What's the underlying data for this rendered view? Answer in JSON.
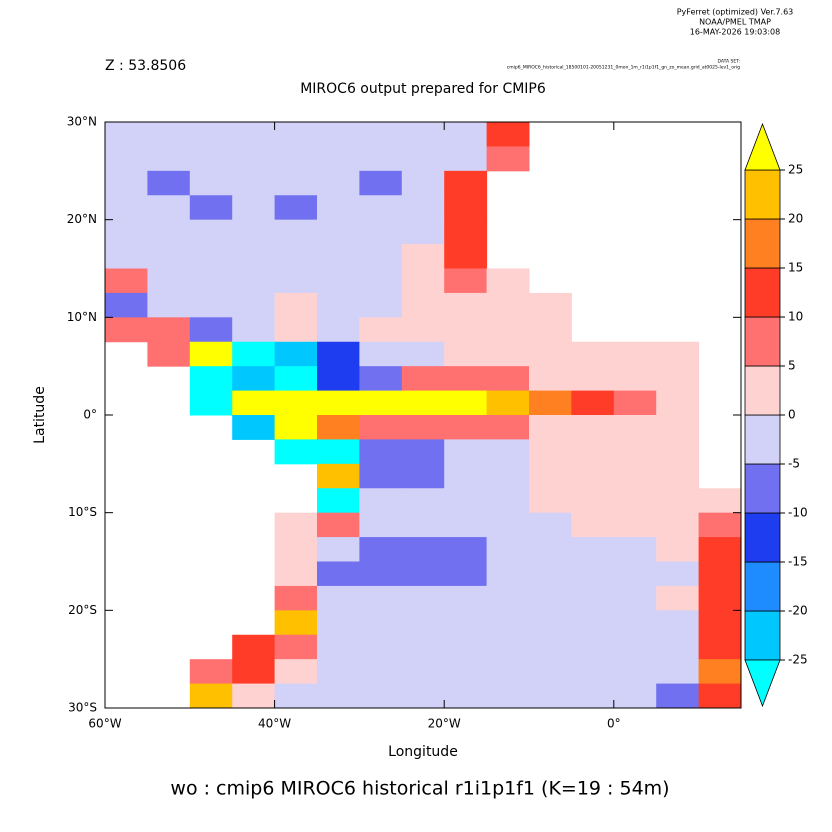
{
  "chart_data": {
    "type": "heatmap",
    "header": [
      "PyFerret (optimized) Ver.7.63",
      "NOAA/PMEL TMAP",
      "16-MAY-2026 19:03:08"
    ],
    "dataset_label": "DATA SET:",
    "dataset": "cmip6_MIROC6_historical_18500101-20051231_0mon_1m_r1i1p1f1_gn_zo_mean.grid_at0025-lev1_orig",
    "depth_label": "Z : 53.8506",
    "title": "MIROC6 output prepared for CMIP6",
    "xlabel": "Longitude",
    "ylabel": "Latitude",
    "footer": "wo : cmip6 MIROC6 historical r1i1p1f1   (K=19 : 54m)",
    "xlim": [
      -60,
      15
    ],
    "ylim": [
      -30,
      30
    ],
    "xticks": [
      {
        "value": -60,
        "label": "60°W"
      },
      {
        "value": -40,
        "label": "40°W"
      },
      {
        "value": -20,
        "label": "20°W"
      },
      {
        "value": 0,
        "label": "0°"
      }
    ],
    "yticks": [
      {
        "value": -30,
        "label": "30°S"
      },
      {
        "value": -20,
        "label": "20°S"
      },
      {
        "value": -10,
        "label": "10°S"
      },
      {
        "value": 0,
        "label": "0°"
      },
      {
        "value": 10,
        "label": "10°N"
      },
      {
        "value": 20,
        "label": "20°N"
      },
      {
        "value": 30,
        "label": "30°N"
      }
    ],
    "x": [
      -57.5,
      -52.5,
      -47.5,
      -42.5,
      -37.5,
      -32.5,
      -27.5,
      -22.5,
      -17.5,
      -12.5,
      -7.5,
      -2.5,
      2.5,
      7.5,
      12.5
    ],
    "y": [
      28.75,
      26.25,
      23.75,
      21.25,
      18.75,
      16.25,
      13.75,
      11.25,
      8.75,
      6.25,
      3.75,
      1.25,
      -1.25,
      -3.75,
      -6.25,
      -8.75,
      -11.25,
      -13.75,
      -16.25,
      -18.75,
      -21.25,
      -23.75,
      -26.25,
      -28.75
    ],
    "values": [
      [
        -2,
        -2,
        -2,
        -2,
        -2,
        -2,
        -2,
        -2,
        -2,
        12,
        null,
        null,
        null,
        null,
        null
      ],
      [
        -2,
        -2,
        -2,
        -2,
        -2,
        -2,
        -2,
        -2,
        -2,
        7,
        null,
        null,
        null,
        null,
        null
      ],
      [
        -2,
        -7,
        -2,
        -2,
        -2,
        -2,
        -7,
        -2,
        12,
        null,
        null,
        null,
        null,
        null,
        null
      ],
      [
        -2,
        -2,
        -7,
        -2,
        -7,
        -2,
        -2,
        -2,
        12,
        null,
        null,
        null,
        null,
        null,
        null
      ],
      [
        -2,
        -2,
        -2,
        -2,
        -2,
        -2,
        -2,
        -2,
        12,
        null,
        null,
        null,
        null,
        null,
        null
      ],
      [
        -2,
        -2,
        -2,
        -2,
        -2,
        -2,
        -2,
        2,
        12,
        null,
        null,
        null,
        null,
        null,
        null
      ],
      [
        7,
        -2,
        -2,
        -2,
        -2,
        -2,
        -2,
        2,
        7,
        2,
        null,
        null,
        null,
        null,
        null
      ],
      [
        -7,
        -2,
        -2,
        -2,
        2,
        -2,
        -2,
        2,
        2,
        2,
        2,
        null,
        null,
        null,
        null
      ],
      [
        7,
        7,
        -7,
        -2,
        2,
        -2,
        2,
        2,
        2,
        2,
        2,
        null,
        null,
        null,
        null
      ],
      [
        null,
        7,
        30,
        -30,
        -22,
        -12,
        -2,
        -2,
        2,
        2,
        2,
        2,
        2,
        2,
        null
      ],
      [
        null,
        null,
        -30,
        -22,
        -30,
        -12,
        -7,
        7,
        7,
        7,
        2,
        2,
        2,
        2,
        null
      ],
      [
        null,
        null,
        -30,
        30,
        30,
        30,
        30,
        30,
        30,
        22,
        17,
        12,
        7,
        2,
        null
      ],
      [
        null,
        null,
        null,
        -22,
        30,
        17,
        7,
        7,
        7,
        7,
        2,
        2,
        2,
        2,
        null
      ],
      [
        null,
        null,
        null,
        null,
        -30,
        -30,
        -7,
        -7,
        -2,
        -2,
        2,
        2,
        2,
        2,
        null
      ],
      [
        null,
        null,
        null,
        null,
        null,
        22,
        -7,
        -7,
        -2,
        -2,
        2,
        2,
        2,
        2,
        null
      ],
      [
        null,
        null,
        null,
        null,
        null,
        -30,
        -2,
        -2,
        -2,
        -2,
        2,
        2,
        2,
        2,
        2
      ],
      [
        null,
        null,
        null,
        null,
        2,
        7,
        -2,
        -2,
        -2,
        -2,
        -2,
        2,
        2,
        2,
        7
      ],
      [
        null,
        null,
        null,
        null,
        2,
        -2,
        -7,
        -7,
        -7,
        -2,
        -2,
        -2,
        -2,
        2,
        12
      ],
      [
        null,
        null,
        null,
        null,
        2,
        -7,
        -7,
        -7,
        -7,
        -2,
        -2,
        -2,
        -2,
        -2,
        12
      ],
      [
        null,
        null,
        null,
        null,
        7,
        -2,
        -2,
        -2,
        -2,
        -2,
        -2,
        -2,
        -2,
        2,
        12
      ],
      [
        null,
        null,
        null,
        null,
        22,
        -2,
        -2,
        -2,
        -2,
        -2,
        -2,
        -2,
        -2,
        -2,
        12
      ],
      [
        null,
        null,
        null,
        12,
        7,
        -2,
        -2,
        -2,
        -2,
        -2,
        -2,
        -2,
        -2,
        -2,
        12
      ],
      [
        null,
        null,
        7,
        12,
        2,
        -2,
        -2,
        -2,
        -2,
        -2,
        -2,
        -2,
        -2,
        -2,
        17
      ],
      [
        null,
        null,
        22,
        2,
        -2,
        -2,
        -2,
        -2,
        -2,
        -2,
        -2,
        -2,
        -2,
        -7,
        12
      ]
    ],
    "colorbar": {
      "levels": [
        -25,
        -20,
        -15,
        -10,
        -5,
        0,
        5,
        10,
        15,
        20,
        25
      ],
      "colors": [
        "#00ffff",
        "#00c8ff",
        "#1e8cff",
        "#1e3cf0",
        "#7070f0",
        "#d2d2f8",
        "#ffd2d2",
        "#ff7070",
        "#ff3c28",
        "#ff8020",
        "#ffc000",
        "#ffff00"
      ]
    }
  }
}
